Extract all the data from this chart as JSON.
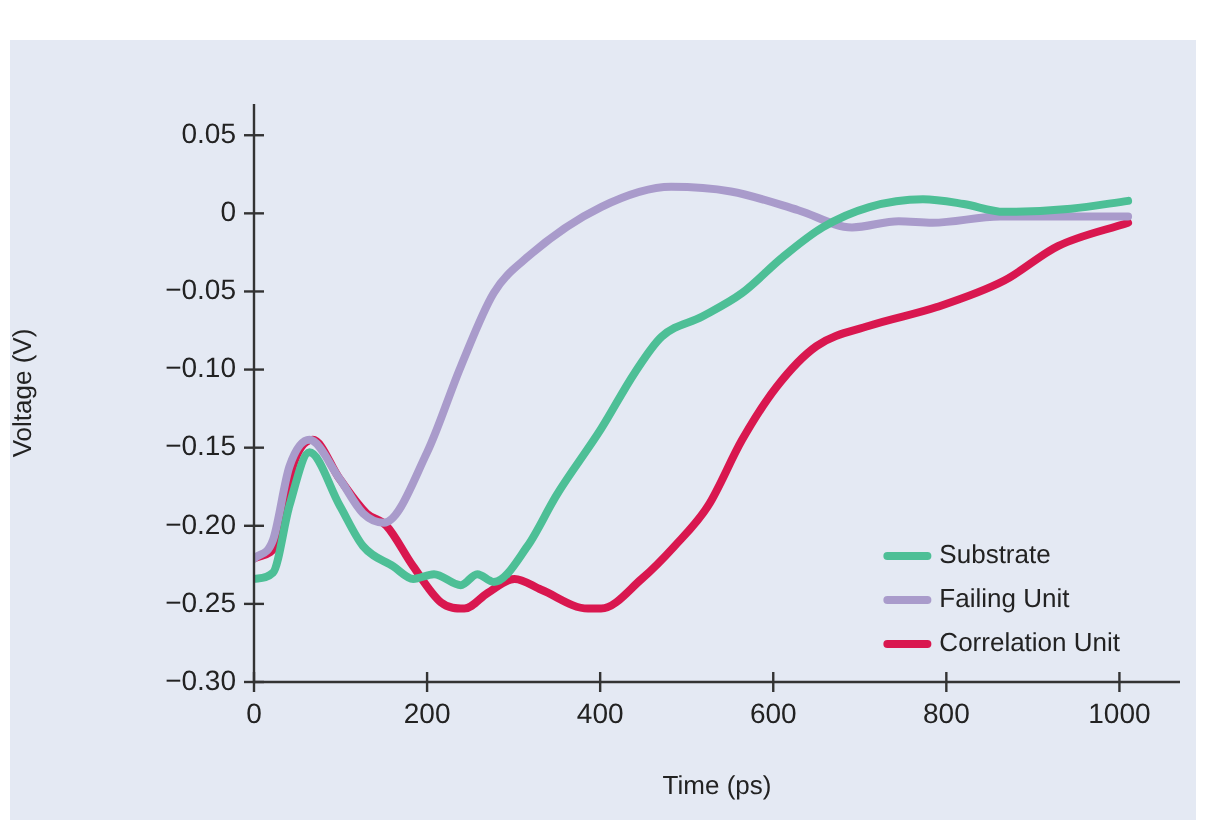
{
  "chart_data": {
    "type": "line",
    "xlabel": "Time (ps)",
    "ylabel": "Voltage (V)",
    "xlim": [
      0,
      1070
    ],
    "xticks": [
      0,
      200,
      400,
      600,
      800,
      1000
    ],
    "ylim": [
      -0.3,
      0.07
    ],
    "yticks": [
      {
        "value": -0.3,
        "label": "−0.30"
      },
      {
        "value": -0.25,
        "label": "−0.25"
      },
      {
        "value": -0.2,
        "label": "−0.20"
      },
      {
        "value": -0.15,
        "label": "−0.15"
      },
      {
        "value": -0.1,
        "label": "−0.10"
      },
      {
        "value": -0.05,
        "label": "−0.05"
      },
      0,
      0.05
    ],
    "grid": false,
    "legend": "bottom right",
    "marker": "none",
    "line_style": "solid",
    "series": [
      {
        "name": "Substrate",
        "color": "#4dbf96",
        "x": [
          0,
          22,
          41,
          64,
          99,
          126,
          161,
          184,
          208,
          239,
          258,
          277,
          316,
          350,
          401,
          440,
          471,
          518,
          564,
          611,
          657,
          711,
          773,
          820,
          867,
          944,
          1010
        ],
        "values": [
          -0.234,
          -0.23,
          -0.187,
          -0.153,
          -0.187,
          -0.213,
          -0.226,
          -0.234,
          -0.231,
          -0.238,
          -0.231,
          -0.236,
          -0.213,
          -0.18,
          -0.138,
          -0.102,
          -0.079,
          -0.066,
          -0.051,
          -0.028,
          -0.009,
          0.004,
          0.009,
          0.006,
          0.001,
          0.003,
          0.008
        ]
      },
      {
        "name": "Failing Unit",
        "color": "#a99bcb",
        "x": [
          0,
          22,
          41,
          64,
          99,
          126,
          150,
          200,
          239,
          277,
          316,
          401,
          482,
          551,
          629,
          691,
          745,
          784,
          862,
          1010
        ],
        "values": [
          -0.221,
          -0.209,
          -0.162,
          -0.145,
          -0.17,
          -0.192,
          -0.198,
          -0.153,
          -0.098,
          -0.051,
          -0.028,
          0.004,
          0.017,
          0.014,
          0.002,
          -0.009,
          -0.005,
          -0.006,
          -0.002,
          -0.002
        ]
      },
      {
        "name": "Correlation Unit",
        "color": "#d9174f",
        "x": [
          0,
          29,
          45,
          68,
          99,
          130,
          153,
          184,
          216,
          243,
          270,
          301,
          332,
          386,
          401,
          448,
          486,
          525,
          564,
          604,
          650,
          711,
          789,
          867,
          929,
          1010
        ],
        "values": [
          -0.221,
          -0.209,
          -0.162,
          -0.145,
          -0.17,
          -0.192,
          -0.2,
          -0.226,
          -0.249,
          -0.253,
          -0.243,
          -0.234,
          -0.241,
          -0.253,
          -0.253,
          -0.234,
          -0.213,
          -0.187,
          -0.145,
          -0.111,
          -0.085,
          -0.072,
          -0.06,
          -0.043,
          -0.021,
          -0.006
        ]
      }
    ]
  }
}
